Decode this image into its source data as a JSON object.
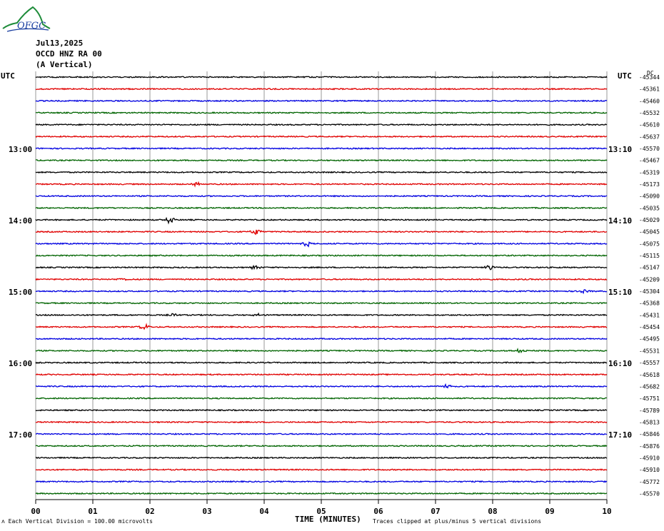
{
  "logo": {
    "text": "OFGC",
    "colors": {
      "arc": "#1e8c3a",
      "text": "#1a3fa0"
    }
  },
  "header": {
    "date": "Jul13,2025",
    "station": "OCCD HNZ RA 00",
    "component": "(A Vertical)"
  },
  "utc_left": "UTC",
  "utc_right": "UTC",
  "top_right_label": "DC",
  "left_times": [
    "13:00",
    "14:00",
    "15:00",
    "16:00",
    "17:00"
  ],
  "right_times": [
    "13:10",
    "14:10",
    "15:10",
    "16:10",
    "17:10"
  ],
  "chart_data": {
    "type": "line",
    "title": "",
    "xlabel": "TIME (MINUTES)",
    "x_ticks": [
      "00",
      "01",
      "02",
      "03",
      "04",
      "05",
      "06",
      "07",
      "08",
      "09",
      "10"
    ],
    "xlim": [
      0,
      10
    ],
    "trace_colors": [
      "#000000",
      "#e00000",
      "#0000e0",
      "#006400"
    ],
    "dc_offsets": [
      "-45344",
      "-45361",
      "-45460",
      "-45532",
      "-45610",
      "-45637",
      "-45570",
      "-45467",
      "-45319",
      "-45173",
      "-45090",
      "-45035",
      "-45029",
      "-45045",
      "-45075",
      "-45115",
      "-45147",
      "-45209",
      "-45304",
      "-45368",
      "-45431",
      "-45454",
      "-45495",
      "-45531",
      "-45557",
      "-45618",
      "-45682",
      "-45751",
      "-45789",
      "-45813",
      "-45846",
      "-45876",
      "-45910",
      "-45910",
      "-45772",
      "-45570"
    ],
    "events": [
      {
        "trace": 9,
        "minute": 2.8,
        "amp": 3
      },
      {
        "trace": 12,
        "minute": 2.35,
        "amp": 5
      },
      {
        "trace": 13,
        "minute": 3.85,
        "amp": 5
      },
      {
        "trace": 14,
        "minute": 4.75,
        "amp": 4
      },
      {
        "trace": 16,
        "minute": 3.85,
        "amp": 3
      },
      {
        "trace": 16,
        "minute": 7.95,
        "amp": 4
      },
      {
        "trace": 17,
        "minute": 1.5,
        "amp": 2
      },
      {
        "trace": 18,
        "minute": 9.6,
        "amp": 3
      },
      {
        "trace": 20,
        "minute": 2.4,
        "amp": 2
      },
      {
        "trace": 20,
        "minute": 3.9,
        "amp": 2
      },
      {
        "trace": 21,
        "minute": 1.9,
        "amp": 4
      },
      {
        "trace": 23,
        "minute": 8.5,
        "amp": 4
      },
      {
        "trace": 26,
        "minute": 7.2,
        "amp": 4
      }
    ]
  },
  "footer": {
    "scale_note": "Each Vertical Division =  100.00 microvolts",
    "clip_note": "Traces clipped at plus/minus 5 vertical divisions"
  }
}
